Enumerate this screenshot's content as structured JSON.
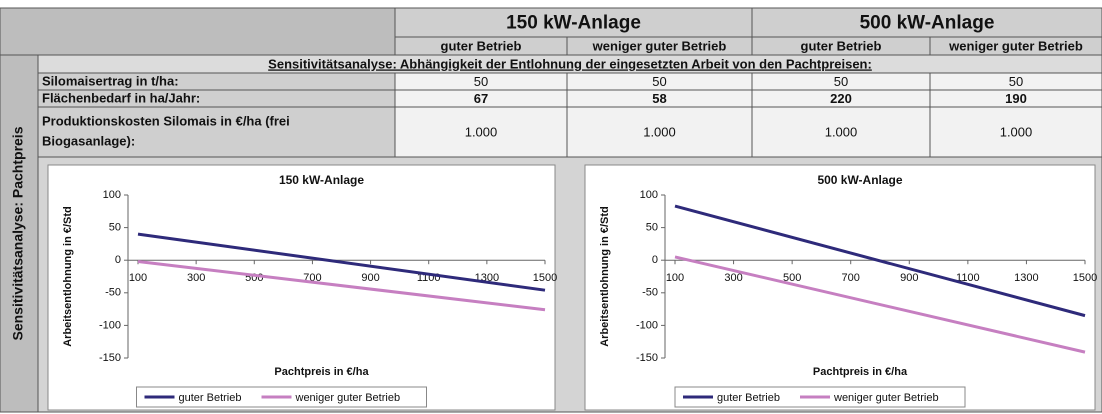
{
  "table": {
    "groups": [
      "150 kW-Anlage",
      "500 kW-Anlage"
    ],
    "subheaders": [
      "guter Betrieb",
      "weniger guter Betrieb",
      "guter Betrieb",
      "weniger guter Betrieb"
    ],
    "section": "Sensitivitätsanalyse: Abhängigkeit der Entlohnung der eingesetzten Arbeit von den Pachtpreisen:",
    "side_label": "Sensitivitätsanalyse: Pachtpreis",
    "rows": [
      {
        "label": [
          "Silomaisertrag in t/ha:"
        ],
        "values": [
          50,
          50,
          50,
          50
        ],
        "bold": false
      },
      {
        "label": [
          "Flächenbedarf in ha/Jahr:"
        ],
        "values": [
          67,
          58,
          220,
          190
        ],
        "bold": true
      },
      {
        "label": [
          "Produktionskosten Silomais in €/ha (frei",
          "Biogasanlage):"
        ],
        "values": [
          "1.000",
          "1.000",
          "1.000",
          "1.000"
        ],
        "bold": false
      }
    ]
  },
  "chart_data": [
    {
      "type": "line",
      "title": "150 kW-Anlage",
      "x_label": "Pachtpreis in €/ha",
      "y_label": "Arbeitsentlohnung in €/Std",
      "x": [
        100,
        1500
      ],
      "xlim": [
        100,
        1500
      ],
      "xticks": [
        100,
        300,
        500,
        700,
        900,
        1100,
        1300,
        1500
      ],
      "ylim": [
        -150,
        100
      ],
      "yticks": [
        100,
        50,
        0,
        -50,
        -100,
        -150
      ],
      "grid": false,
      "legend": "bottom",
      "series": [
        {
          "name": "guter Betrieb",
          "color": "#2e2a7a",
          "values": [
            40,
            -46
          ]
        },
        {
          "name": "weniger guter Betrieb",
          "color": "#c67fc1",
          "values": [
            -2,
            -76
          ]
        }
      ]
    },
    {
      "type": "line",
      "title": "500 kW-Anlage",
      "x_label": "Pachtpreis in €/ha",
      "y_label": "Arbeitsentlohnung in €/Std",
      "x": [
        100,
        1500
      ],
      "xlim": [
        100,
        1500
      ],
      "xticks": [
        100,
        300,
        500,
        700,
        900,
        1100,
        1300,
        1500
      ],
      "ylim": [
        -150,
        100
      ],
      "yticks": [
        100,
        50,
        0,
        -50,
        -100,
        -150
      ],
      "grid": false,
      "legend": "bottom",
      "series": [
        {
          "name": "guter Betrieb",
          "color": "#2e2a7a",
          "values": [
            83,
            -85
          ]
        },
        {
          "name": "weniger guter Betrieb",
          "color": "#c67fc1",
          "values": [
            5,
            -141
          ]
        }
      ]
    }
  ]
}
